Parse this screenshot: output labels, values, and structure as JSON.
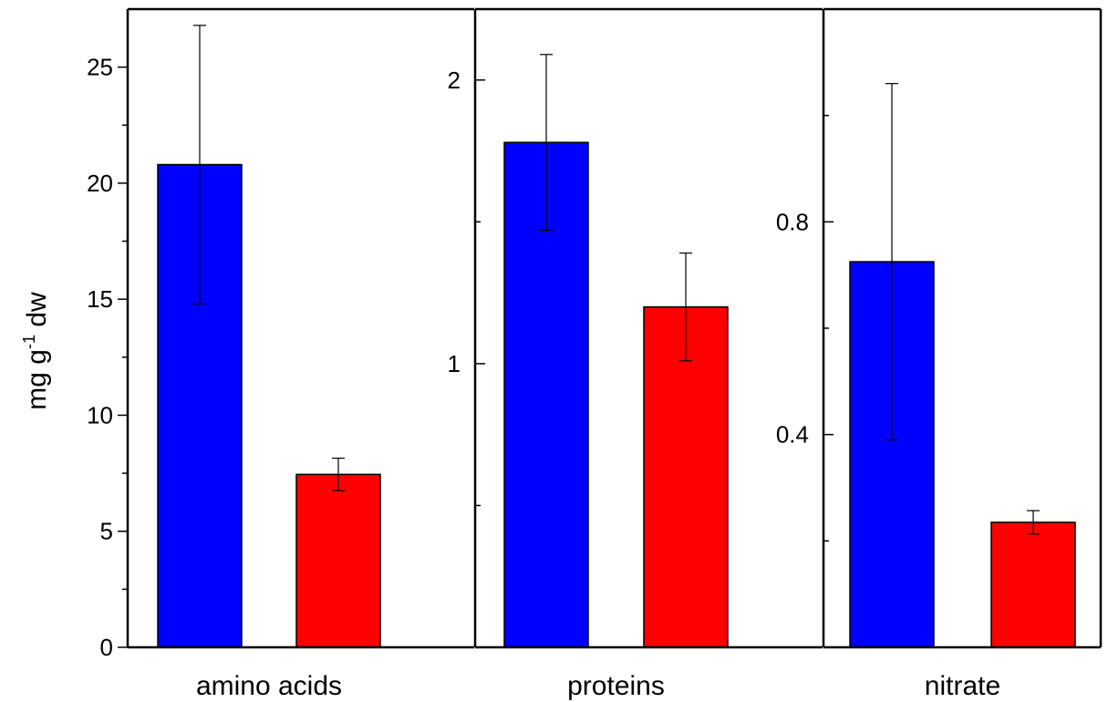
{
  "chart_data": {
    "type": "bar",
    "ylabel": {
      "main": "mg g",
      "sup": "-1",
      "unit": " dw"
    },
    "colors": {
      "series_a": "#0000ff",
      "series_b": "#ff0000"
    },
    "grid": false,
    "panels": [
      {
        "category": "amino acids",
        "ylim": [
          0,
          27.5
        ],
        "major_ticks": [
          0,
          5,
          10,
          15,
          20,
          25
        ],
        "tick_labels": [
          "0",
          "5",
          "10",
          "15",
          "20",
          "25"
        ],
        "minor_ticks": [
          2.5,
          7.5,
          12.5,
          17.5,
          22.5
        ],
        "values": [
          20.8,
          7.45
        ],
        "errors": [
          6.0,
          0.7
        ]
      },
      {
        "category": "proteins",
        "ylim": [
          0,
          2.25
        ],
        "major_ticks": [
          1,
          2
        ],
        "tick_labels": [
          "1",
          "2"
        ],
        "minor_ticks": [
          0.5,
          1.5
        ],
        "values": [
          1.78,
          1.2
        ],
        "errors": [
          0.31,
          0.19
        ]
      },
      {
        "category": "nitrate",
        "ylim": [
          0,
          1.2
        ],
        "major_ticks": [
          0.4,
          0.8
        ],
        "tick_labels": [
          "0.4",
          "0.8"
        ],
        "minor_ticks": [
          0.2,
          0.6,
          1.0
        ],
        "values": [
          0.725,
          0.235
        ],
        "errors": [
          0.335,
          0.022
        ]
      }
    ]
  }
}
